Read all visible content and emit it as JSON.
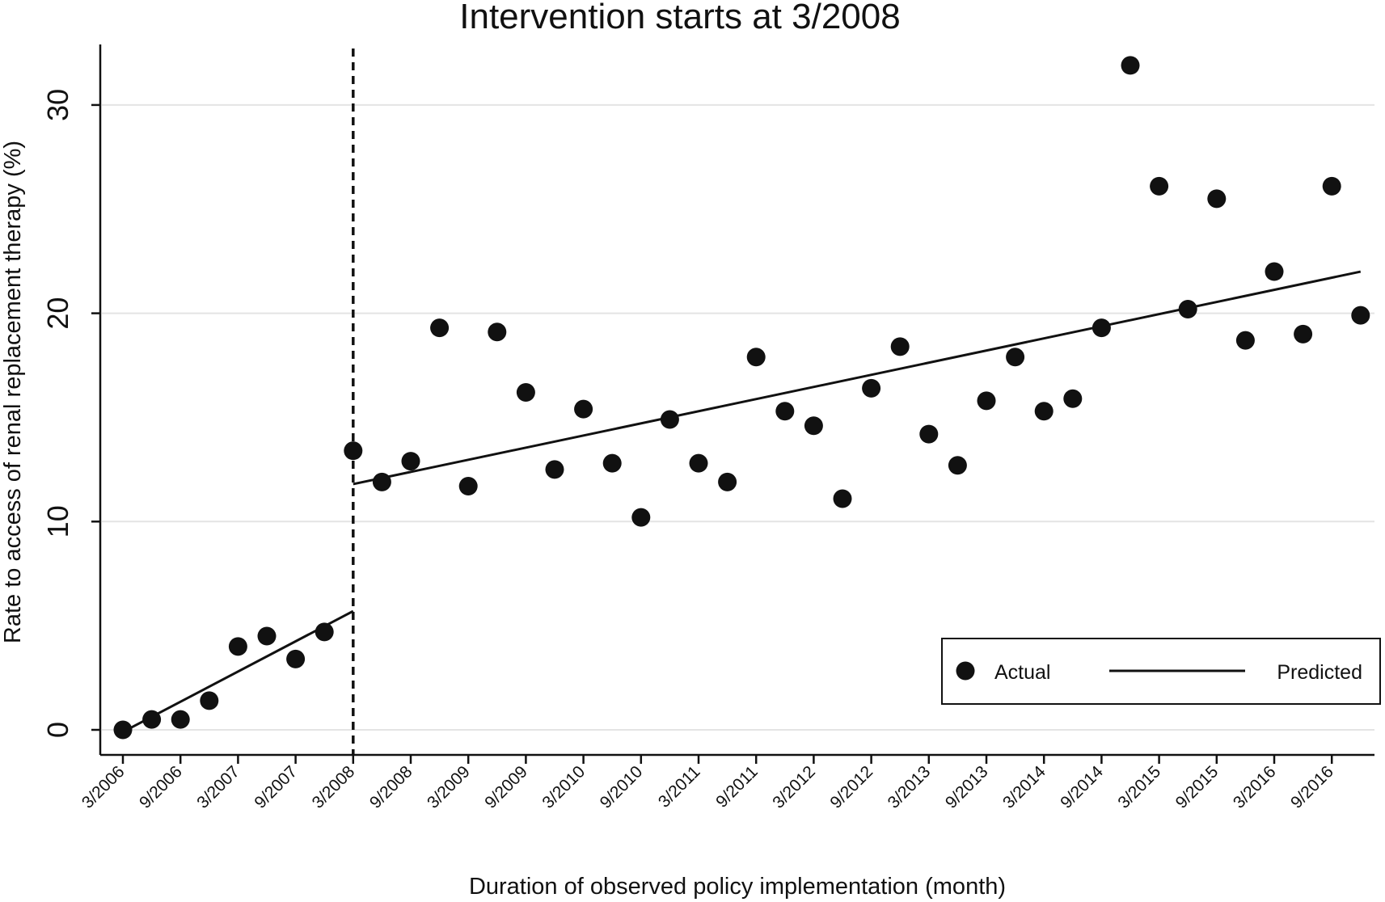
{
  "chart_data": {
    "type": "scatter",
    "title": "Intervention starts at 3/2008",
    "xlabel": "Duration of observed policy implementation (month)",
    "ylabel": "Rate to access of renal replacement therapy (%)",
    "ylim": [
      -1.2,
      33
    ],
    "yticks": [
      0,
      10,
      20,
      30
    ],
    "grid": "horizontal",
    "xticks": [
      "3/2006",
      "9/2006",
      "3/2007",
      "9/2007",
      "3/2008",
      "9/2008",
      "3/2009",
      "9/2009",
      "3/2010",
      "9/2010",
      "3/2011",
      "9/2011",
      "3/2012",
      "9/2012",
      "3/2013",
      "9/2013",
      "3/2014",
      "9/2014",
      "3/2015",
      "9/2015",
      "3/2016",
      "9/2016"
    ],
    "x": [
      "3/2006",
      "6/2006",
      "9/2006",
      "12/2006",
      "3/2007",
      "6/2007",
      "9/2007",
      "12/2007",
      "3/2008",
      "6/2008",
      "9/2008",
      "12/2008",
      "3/2009",
      "6/2009",
      "9/2009",
      "12/2009",
      "3/2010",
      "6/2010",
      "9/2010",
      "12/2010",
      "3/2011",
      "6/2011",
      "9/2011",
      "12/2011",
      "3/2012",
      "6/2012",
      "9/2012",
      "12/2012",
      "3/2013",
      "6/2013",
      "9/2013",
      "12/2013",
      "3/2014",
      "6/2014",
      "9/2014",
      "12/2014",
      "3/2015",
      "6/2015",
      "9/2015",
      "12/2015",
      "3/2016",
      "6/2016",
      "9/2016",
      "12/2016"
    ],
    "series": [
      {
        "name": "Actual",
        "type": "scatter",
        "values": [
          0,
          0.5,
          0.5,
          1.4,
          4.0,
          4.5,
          3.4,
          4.7,
          13.4,
          11.9,
          12.9,
          19.3,
          11.7,
          19.1,
          16.2,
          12.5,
          15.4,
          12.8,
          10.2,
          14.9,
          12.8,
          11.9,
          17.9,
          15.3,
          14.6,
          11.1,
          16.4,
          18.4,
          14.2,
          12.7,
          15.8,
          17.9,
          15.3,
          15.9,
          19.3,
          31.9,
          26.1,
          20.2,
          25.5,
          18.7,
          22.0,
          19.0,
          26.1,
          19.9
        ]
      },
      {
        "name": "Predicted",
        "type": "line",
        "segments": [
          {
            "from": "3/2006",
            "to": "3/2008",
            "start_value": -0.1,
            "end_value": 5.7
          },
          {
            "from": "3/2008",
            "to": "12/2016",
            "start_value": 11.8,
            "end_value": 22.0
          }
        ]
      }
    ],
    "intervention_line": {
      "at": "3/2008",
      "style": "dashed"
    },
    "legend": {
      "position": "bottom-right",
      "entries": [
        "Actual",
        "Predicted"
      ]
    }
  }
}
